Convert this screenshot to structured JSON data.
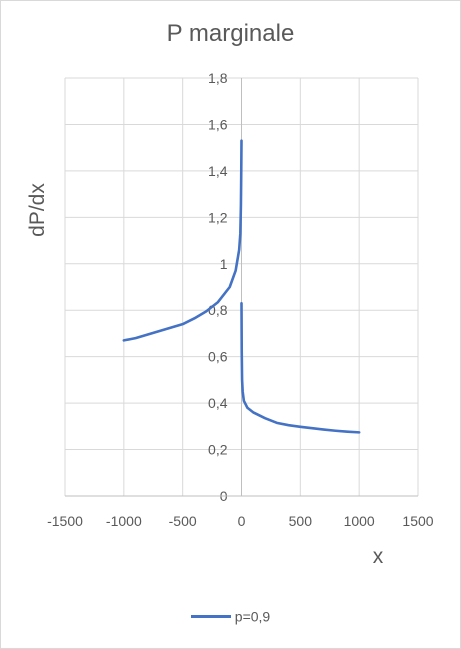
{
  "chart_data": {
    "type": "line",
    "title": "P marginale",
    "xlabel": "x",
    "ylabel": "dP/dx",
    "xlim": [
      -1500,
      1500
    ],
    "ylim": [
      0,
      1.8
    ],
    "x_ticks": [
      -1500,
      -1000,
      -500,
      0,
      500,
      1000,
      1500
    ],
    "x_tick_labels": [
      "-1500",
      "-1000",
      "-500",
      "0",
      "500",
      "1000",
      "1500"
    ],
    "y_ticks": [
      0,
      0.2,
      0.4,
      0.6,
      0.8,
      1.0,
      1.2,
      1.4,
      1.6,
      1.8
    ],
    "y_tick_labels": [
      "0",
      "0,2",
      "0,4",
      "0,6",
      "0,8",
      "1",
      "1,2",
      "1,4",
      "1,6",
      "1,8"
    ],
    "grid": true,
    "legend_position": "bottom",
    "series": [
      {
        "name": "p=0,9",
        "color": "#4472c4",
        "segments": [
          [
            [
              -1000,
              0.67
            ],
            [
              -900,
              0.68
            ],
            [
              -800,
              0.695
            ],
            [
              -700,
              0.71
            ],
            [
              -600,
              0.725
            ],
            [
              -500,
              0.74
            ],
            [
              -400,
              0.765
            ],
            [
              -300,
              0.795
            ],
            [
              -200,
              0.835
            ],
            [
              -100,
              0.9
            ],
            [
              -50,
              0.97
            ],
            [
              -20,
              1.06
            ],
            [
              -10,
              1.13
            ],
            [
              -5,
              1.25
            ],
            [
              -2,
              1.4
            ],
            [
              0,
              1.53
            ]
          ],
          [
            [
              0,
              0.83
            ],
            [
              2,
              0.62
            ],
            [
              5,
              0.5
            ],
            [
              10,
              0.45
            ],
            [
              20,
              0.41
            ],
            [
              50,
              0.38
            ],
            [
              100,
              0.36
            ],
            [
              200,
              0.335
            ],
            [
              300,
              0.315
            ],
            [
              400,
              0.305
            ],
            [
              500,
              0.298
            ],
            [
              600,
              0.292
            ],
            [
              700,
              0.286
            ],
            [
              800,
              0.281
            ],
            [
              900,
              0.277
            ],
            [
              1000,
              0.274
            ]
          ]
        ]
      }
    ]
  }
}
